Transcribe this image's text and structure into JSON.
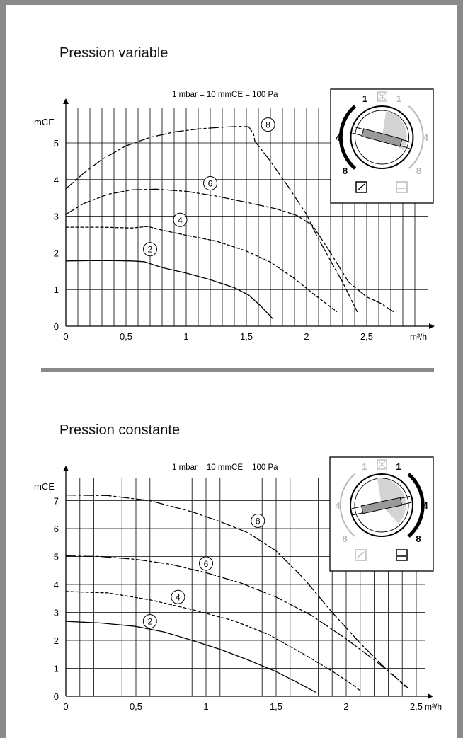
{
  "chart_data": [
    {
      "type": "line",
      "title": "Pression variable",
      "subtitle": "1 mbar = 10 mmCE = 100 Pa",
      "xlabel": "m³/h",
      "ylabel": "mCE",
      "xlim": [
        0,
        2.9
      ],
      "ylim": [
        0,
        5.7
      ],
      "x_ticks": [
        "0",
        "0,5",
        "1",
        "1,5",
        "2",
        "2,5"
      ],
      "x_tick_values": [
        0,
        0.5,
        1,
        1.5,
        2,
        2.5
      ],
      "y_ticks": [
        "0",
        "1",
        "2",
        "3",
        "4",
        "5"
      ],
      "y_tick_values": [
        0,
        1,
        2,
        3,
        4,
        5
      ],
      "grid": true,
      "series": [
        {
          "name": "2",
          "dash": "solid",
          "label_at": [
            0.7,
            2.1
          ],
          "points": [
            [
              0,
              1.78
            ],
            [
              0.2,
              1.79
            ],
            [
              0.4,
              1.79
            ],
            [
              0.55,
              1.78
            ],
            [
              0.65,
              1.76
            ],
            [
              0.8,
              1.6
            ],
            [
              1.0,
              1.45
            ],
            [
              1.2,
              1.27
            ],
            [
              1.4,
              1.05
            ],
            [
              1.52,
              0.85
            ],
            [
              1.62,
              0.55
            ],
            [
              1.72,
              0.2
            ]
          ]
        },
        {
          "name": "4",
          "dash": "short",
          "label_at": [
            0.95,
            2.9
          ],
          "points": [
            [
              0,
              2.7
            ],
            [
              0.3,
              2.7
            ],
            [
              0.55,
              2.68
            ],
            [
              0.68,
              2.72
            ],
            [
              0.8,
              2.62
            ],
            [
              1.0,
              2.48
            ],
            [
              1.25,
              2.32
            ],
            [
              1.5,
              2.05
            ],
            [
              1.7,
              1.75
            ],
            [
              1.9,
              1.3
            ],
            [
              2.05,
              0.9
            ],
            [
              2.25,
              0.4
            ]
          ]
        },
        {
          "name": "6",
          "dash": "dashdot",
          "label_at": [
            1.2,
            3.9
          ],
          "points": [
            [
              0,
              3.05
            ],
            [
              0.15,
              3.35
            ],
            [
              0.35,
              3.6
            ],
            [
              0.55,
              3.72
            ],
            [
              0.75,
              3.74
            ],
            [
              1.0,
              3.68
            ],
            [
              1.25,
              3.55
            ],
            [
              1.5,
              3.38
            ],
            [
              1.75,
              3.2
            ],
            [
              1.92,
              3.02
            ],
            [
              2.05,
              2.75
            ],
            [
              2.2,
              2.0
            ],
            [
              2.35,
              1.2
            ],
            [
              2.5,
              0.8
            ],
            [
              2.62,
              0.62
            ],
            [
              2.72,
              0.4
            ]
          ]
        },
        {
          "name": "8",
          "dash": "dashdot",
          "label_at": [
            1.68,
            5.5
          ],
          "points": [
            [
              0,
              3.75
            ],
            [
              0.15,
              4.18
            ],
            [
              0.3,
              4.55
            ],
            [
              0.5,
              4.92
            ],
            [
              0.7,
              5.15
            ],
            [
              0.9,
              5.3
            ],
            [
              1.1,
              5.38
            ],
            [
              1.3,
              5.43
            ],
            [
              1.45,
              5.45
            ],
            [
              1.52,
              5.44
            ],
            [
              1.56,
              5.25
            ],
            [
              1.57,
              5.05
            ],
            [
              1.7,
              4.5
            ],
            [
              1.85,
              3.8
            ],
            [
              2.0,
              3.05
            ],
            [
              2.08,
              2.5
            ],
            [
              2.18,
              1.9
            ],
            [
              2.3,
              1.2
            ],
            [
              2.42,
              0.4
            ]
          ]
        }
      ]
    },
    {
      "type": "line",
      "title": "Pression constante",
      "subtitle": "1 mbar = 10 mmCE = 100 Pa",
      "xlabel": "m³/h",
      "ylabel": "mCE",
      "xlim": [
        0,
        2.55
      ],
      "ylim": [
        0,
        7.7
      ],
      "x_ticks": [
        "0",
        "0,5",
        "1",
        "1,5",
        "2",
        "2,5"
      ],
      "x_tick_values": [
        0,
        0.5,
        1,
        1.5,
        2,
        2.5
      ],
      "y_ticks": [
        "0",
        "1",
        "2",
        "3",
        "4",
        "5",
        "6",
        "7"
      ],
      "y_tick_values": [
        0,
        1,
        2,
        3,
        4,
        5,
        6,
        7
      ],
      "grid": true,
      "series": [
        {
          "name": "2",
          "dash": "solid",
          "label_at": [
            0.6,
            2.68
          ],
          "points": [
            [
              0,
              2.68
            ],
            [
              0.25,
              2.62
            ],
            [
              0.5,
              2.5
            ],
            [
              0.7,
              2.3
            ],
            [
              0.9,
              2.0
            ],
            [
              1.1,
              1.68
            ],
            [
              1.3,
              1.3
            ],
            [
              1.5,
              0.88
            ],
            [
              1.65,
              0.5
            ],
            [
              1.78,
              0.15
            ]
          ]
        },
        {
          "name": "4",
          "dash": "short",
          "label_at": [
            0.8,
            3.55
          ],
          "points": [
            [
              0,
              3.75
            ],
            [
              0.3,
              3.7
            ],
            [
              0.6,
              3.45
            ],
            [
              0.9,
              3.1
            ],
            [
              1.2,
              2.7
            ],
            [
              1.45,
              2.2
            ],
            [
              1.7,
              1.5
            ],
            [
              1.9,
              0.9
            ],
            [
              2.05,
              0.4
            ],
            [
              2.1,
              0.2
            ]
          ]
        },
        {
          "name": "6",
          "dash": "dashdot",
          "label_at": [
            1.0,
            4.75
          ],
          "points": [
            [
              0,
              5.02
            ],
            [
              0.25,
              5.0
            ],
            [
              0.5,
              4.9
            ],
            [
              0.75,
              4.72
            ],
            [
              1.0,
              4.42
            ],
            [
              1.25,
              4.05
            ],
            [
              1.5,
              3.55
            ],
            [
              1.75,
              2.9
            ],
            [
              2.0,
              2.05
            ],
            [
              2.2,
              1.3
            ],
            [
              2.35,
              0.7
            ],
            [
              2.42,
              0.35
            ]
          ]
        },
        {
          "name": "8",
          "dash": "dashdot",
          "label_at": [
            1.37,
            6.28
          ],
          "points": [
            [
              0,
              7.2
            ],
            [
              0.3,
              7.18
            ],
            [
              0.6,
              7.0
            ],
            [
              0.9,
              6.6
            ],
            [
              1.1,
              6.25
            ],
            [
              1.3,
              5.85
            ],
            [
              1.5,
              5.2
            ],
            [
              1.7,
              4.2
            ],
            [
              1.9,
              3.0
            ],
            [
              2.1,
              1.9
            ],
            [
              2.3,
              0.9
            ],
            [
              2.44,
              0.3
            ]
          ]
        }
      ]
    }
  ],
  "selector_1": {
    "numbers_active": {
      "one": "1",
      "four": "4",
      "eight": "8"
    },
    "numbers_inactive": {
      "one": "1",
      "four": "4",
      "eight": "8"
    },
    "active_side": "left",
    "icons": [
      "variable-pressure-icon",
      "constant-pressure-icon",
      "fan-icon"
    ]
  },
  "selector_2": {
    "numbers_active": {
      "one": "1",
      "four": "4",
      "eight": "8"
    },
    "numbers_inactive": {
      "one": "1",
      "four": "4",
      "eight": "8"
    },
    "active_side": "right",
    "icons": [
      "variable-pressure-icon",
      "constant-pressure-icon",
      "fan-icon"
    ]
  },
  "colors": {
    "active": "#000000",
    "inactive": "#b8b8b8",
    "frame": "#8a8a8a",
    "grid": "#000000"
  }
}
